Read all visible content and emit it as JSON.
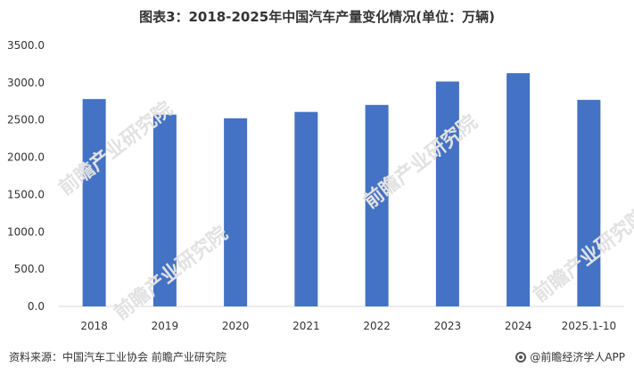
{
  "title": "图表3：2018-2025年中国汽车产量变化情况(单位：万辆)",
  "watermark": "前瞻产业研究院",
  "source": "资料来源：中国汽车工业协会 前瞻产业研究院",
  "brand": "@前瞻经济学人APP",
  "colors": {
    "bar": "#4472C4",
    "grid": "#d9d9d9",
    "text": "#333333"
  },
  "chart_data": {
    "type": "bar",
    "title": "图表3：2018-2025年中国汽车产量变化情况(单位：万辆)",
    "categories": [
      "2018",
      "2019",
      "2020",
      "2021",
      "2022",
      "2023",
      "2024",
      "2025.1-10"
    ],
    "values": [
      2781,
      2572,
      2523,
      2608,
      2702,
      3016,
      3128,
      2770
    ],
    "ylim": [
      0,
      3500
    ],
    "yticks": [
      "0.0",
      "500.0",
      "1000.0",
      "1500.0",
      "2000.0",
      "2500.0",
      "3000.0",
      "3500.0"
    ],
    "grid": false,
    "legend": "none"
  }
}
